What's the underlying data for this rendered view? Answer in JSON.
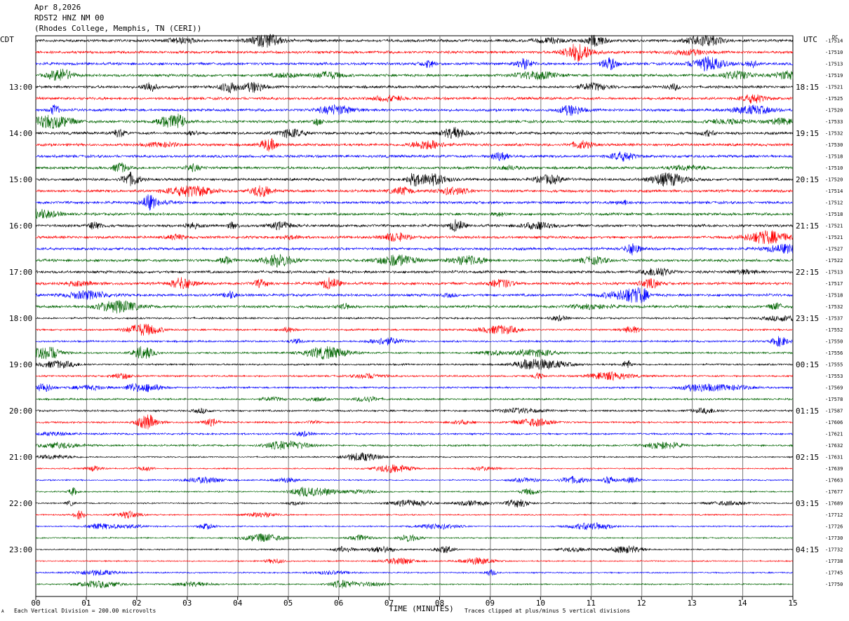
{
  "header": {
    "date": "Apr 8,2026",
    "station": "RDST2 HNZ NM 00",
    "location": "(Rhodes College, Memphis, TN (CERI))"
  },
  "left_timezone": "CDT",
  "right_timezone": "UTC",
  "dc_label": "DC",
  "footer": {
    "scale_note": "Each Vertical Division =  200.00 microvolts",
    "clip_note": "Traces clipped at plus/minus 5 vertical divisions",
    "corner_mark": "A"
  },
  "chart_data": {
    "type": "line",
    "title": "",
    "xlabel": "TIME (MINUTES)",
    "ylabel": "",
    "xlim": [
      0,
      15
    ],
    "x_ticks": [
      "00",
      "01",
      "02",
      "03",
      "04",
      "05",
      "06",
      "07",
      "08",
      "09",
      "10",
      "11",
      "12",
      "13",
      "14",
      "15"
    ],
    "grid": true,
    "trace_colors": [
      "#000000",
      "#ff0000",
      "#0000ff",
      "#006400"
    ],
    "left_hour_labels": [
      "13:00",
      "14:00",
      "15:00",
      "16:00",
      "17:00",
      "18:00",
      "19:00",
      "20:00",
      "21:00",
      "22:00",
      "23:00"
    ],
    "right_hour_labels": [
      "18:15",
      "19:15",
      "20:15",
      "21:15",
      "22:15",
      "23:15",
      "00:15",
      "01:15",
      "02:15",
      "03:15",
      "04:15"
    ],
    "trace_dc_offsets": [
      -17514,
      -17510,
      -17513,
      -17519,
      -17521,
      -17525,
      -17520,
      -17533,
      -17532,
      -17530,
      -17518,
      -17510,
      -17520,
      -17514,
      -17512,
      -17518,
      -17521,
      -17521,
      -17527,
      -17522,
      -17513,
      -17517,
      -17518,
      -17532,
      -17537,
      -17552,
      -17550,
      -17556,
      -17555,
      -17553,
      -17569,
      -17578,
      -17587,
      -17606,
      -17621,
      -17632,
      -17631,
      -17639,
      -17663,
      -17677,
      -17689,
      -17712,
      -17726,
      -17730,
      -17732,
      -17738,
      -17745,
      -17750
    ]
  }
}
